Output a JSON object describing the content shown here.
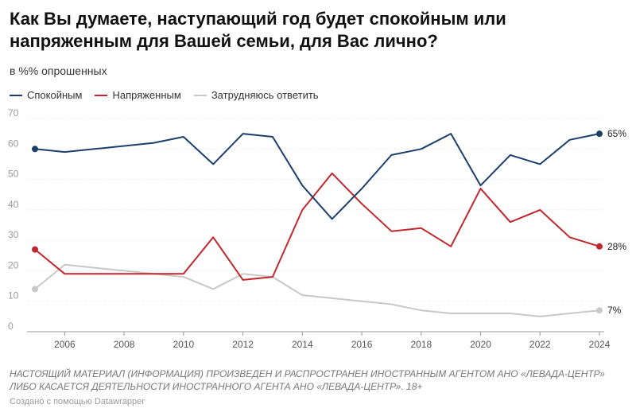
{
  "header": {
    "title": "Как Вы думаете, наступающий год будет спокойным или напряженным для Вашей семьи, для Вас лично?",
    "subtitle": "в %% опрошенных"
  },
  "footer": {
    "note": "НАСТОЯЩИЙ МАТЕРИАЛ (ИНФОРМАЦИЯ) ПРОИЗВЕДЕН И РАСПРОСТРАНЕН ИНОСТРАННЫМ АГЕНТОМ АНО «ЛЕВАДА-ЦЕНТР» ЛИБО КАСАЕТСЯ ДЕЯТЕЛЬНОСТИ ИНОСТРАННОГО АГЕНТА АНО «ЛЕВАДА-ЦЕНТР». 18+",
    "credit": "Создано с помощью Datawrapper"
  },
  "chart_data": {
    "type": "line",
    "x": [
      2005,
      2006,
      2007,
      2008,
      2009,
      2010,
      2011,
      2012,
      2013,
      2014,
      2015,
      2016,
      2017,
      2018,
      2019,
      2020,
      2021,
      2022,
      2023,
      2024
    ],
    "series": [
      {
        "name": "Спокойным",
        "color": "#1b3f6b",
        "values": [
          60,
          59,
          60,
          61,
          62,
          64,
          55,
          65,
          64,
          48,
          37,
          47,
          58,
          60,
          65,
          48,
          58,
          55,
          63,
          65
        ],
        "end_label": "65%"
      },
      {
        "name": "Напряженным",
        "color": "#c0272d",
        "values": [
          27,
          19,
          19,
          19,
          19,
          19,
          31,
          17,
          18,
          40,
          52,
          42,
          33,
          34,
          28,
          47,
          36,
          40,
          31,
          28
        ],
        "end_label": "28%"
      },
      {
        "name": "Затрудняюсь ответить",
        "color": "#c8c8c8",
        "values": [
          14,
          22,
          21,
          20,
          19,
          18,
          14,
          19,
          18,
          12,
          11,
          10,
          9,
          7,
          6,
          6,
          6,
          5,
          6,
          7
        ],
        "end_label": "7%"
      }
    ],
    "xlim": [
      2005,
      2024
    ],
    "ylim": [
      0,
      70
    ],
    "x_ticks": [
      2006,
      2008,
      2010,
      2012,
      2014,
      2016,
      2018,
      2020,
      2022,
      2024
    ],
    "y_ticks": [
      0,
      10,
      20,
      30,
      40,
      50,
      60,
      70
    ],
    "grid": true,
    "legend": "top-left"
  }
}
